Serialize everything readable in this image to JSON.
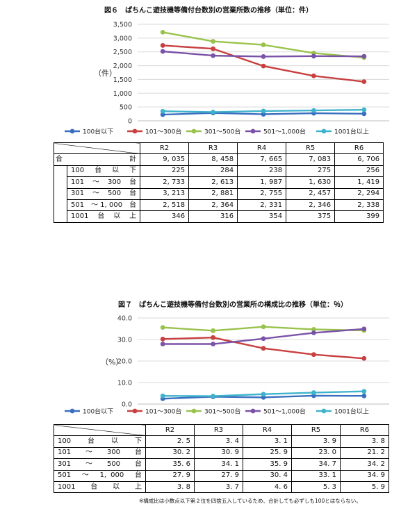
{
  "fig6": {
    "title": "図６　ぱちんこ遊技機等備付台数別の営業所数の推移（単位：件）",
    "table": {
      "total_label_a": "合",
      "total_label_b": "計",
      "total_values": [
        "9, 035",
        "8, 458",
        "7, 665",
        "7, 083",
        "6, 706"
      ],
      "rows": [
        {
          "label": "100　台　以　下",
          "values": [
            "225",
            "284",
            "238",
            "275",
            "256"
          ]
        },
        {
          "label": "101　〜　300　台",
          "values": [
            "2, 733",
            "2, 613",
            "1, 987",
            "1, 630",
            "1, 419"
          ]
        },
        {
          "label": "301　〜　500　台",
          "values": [
            "3, 213",
            "2, 881",
            "2, 755",
            "2, 457",
            "2, 294"
          ]
        },
        {
          "label": "501　〜 1, 000　台",
          "values": [
            "2, 518",
            "2, 364",
            "2, 331",
            "2, 346",
            "2, 338"
          ]
        },
        {
          "label": "1001　台　以　上",
          "values": [
            "346",
            "316",
            "354",
            "375",
            "399"
          ]
        }
      ]
    }
  },
  "fig7": {
    "title": "図７　ぱちんこ遊技機等備付台数別の営業所の構成比の推移（単位：％）",
    "table": {
      "rows": [
        {
          "label": "100　台　以　下",
          "values": [
            "2. 5",
            "3. 4",
            "3. 1",
            "3. 9",
            "3. 8"
          ]
        },
        {
          "label": "101　〜　300　台",
          "values": [
            "30. 2",
            "30. 9",
            "25. 9",
            "23. 0",
            "21. 2"
          ]
        },
        {
          "label": "301　〜　500　台",
          "values": [
            "35. 6",
            "34. 1",
            "35. 9",
            "34. 7",
            "34. 2"
          ]
        },
        {
          "label": "501　〜　1, 000　台",
          "values": [
            "27. 9",
            "27. 9",
            "30. 4",
            "33. 1",
            "34. 9"
          ]
        },
        {
          "label": "1001　台　以　上",
          "values": [
            "3. 8",
            "3. 7",
            "4. 6",
            "5. 3",
            "5. 9"
          ]
        }
      ]
    },
    "footnote": "※構成比は小数点以下第２位を四捨五入しているため、合計しても必ずしも100とはならない。"
  },
  "chart_data": [
    {
      "type": "line",
      "title": "図６　ぱちんこ遊技機等備付台数別の営業所数の推移（単位：件）",
      "ylabel": "（件）",
      "xlabel": "",
      "categories": [
        "R2",
        "R3",
        "R4",
        "R5",
        "R6"
      ],
      "ylim": [
        0,
        3500
      ],
      "yticks": [
        0,
        500,
        1000,
        1500,
        2000,
        2500,
        3000,
        3500
      ],
      "ytick_labels": [
        "0",
        "500",
        "1,000",
        "1,500",
        "2,000",
        "2,500",
        "3,000",
        "3,500"
      ],
      "grid": true,
      "legend": "bottom",
      "series": [
        {
          "name": "100台以下",
          "color": "#3A6FBF",
          "values": [
            225,
            284,
            238,
            275,
            256
          ]
        },
        {
          "name": "101〜300台",
          "color": "#C84040",
          "values": [
            2733,
            2613,
            1987,
            1630,
            1419
          ]
        },
        {
          "name": "301〜500台",
          "color": "#99C24D",
          "values": [
            3213,
            2881,
            2755,
            2457,
            2294
          ]
        },
        {
          "name": "501〜1,000台",
          "color": "#7A52A8",
          "values": [
            2518,
            2364,
            2331,
            2346,
            2338
          ]
        },
        {
          "name": "1001台以上",
          "color": "#3FB3CC",
          "values": [
            346,
            316,
            354,
            375,
            399
          ]
        }
      ]
    },
    {
      "type": "line",
      "title": "図７　ぱちんこ遊技機等備付台数別の営業所の構成比の推移（単位：％）",
      "ylabel": "（%）",
      "xlabel": "",
      "categories": [
        "R2",
        "R3",
        "R4",
        "R5",
        "R6"
      ],
      "ylim": [
        0,
        40
      ],
      "yticks": [
        0,
        10,
        20,
        30,
        40
      ],
      "ytick_labels": [
        "0.0",
        "10.0",
        "20.0",
        "30.0",
        "40.0"
      ],
      "grid": true,
      "legend": "bottom",
      "series": [
        {
          "name": "100台以下",
          "color": "#3A6FBF",
          "values": [
            2.5,
            3.4,
            3.1,
            3.9,
            3.8
          ]
        },
        {
          "name": "101〜300台",
          "color": "#C84040",
          "values": [
            30.2,
            30.9,
            25.9,
            23.0,
            21.2
          ]
        },
        {
          "name": "301〜500台",
          "color": "#99C24D",
          "values": [
            35.6,
            34.1,
            35.9,
            34.7,
            34.2
          ]
        },
        {
          "name": "501〜1,000台",
          "color": "#7A52A8",
          "values": [
            27.9,
            27.9,
            30.4,
            33.1,
            34.9
          ]
        },
        {
          "name": "1001台以上",
          "color": "#3FB3CC",
          "values": [
            3.8,
            3.7,
            4.6,
            5.3,
            5.9
          ]
        }
      ]
    }
  ]
}
